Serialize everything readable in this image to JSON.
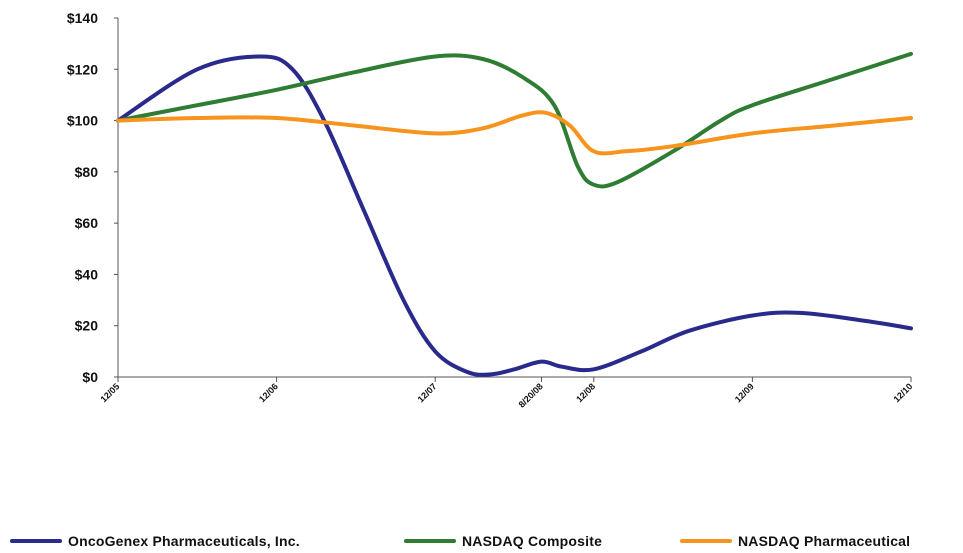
{
  "chart_data": {
    "type": "line",
    "title": "",
    "xlabel": "",
    "ylabel": "",
    "ylim": [
      0,
      140
    ],
    "y_ticks": [
      "$0",
      "$20",
      "$40",
      "$60",
      "$80",
      "$100",
      "$120",
      "$140"
    ],
    "y_tick_values": [
      0,
      20,
      40,
      60,
      80,
      100,
      120,
      140
    ],
    "x_ticks": [
      "12/05",
      "12/06",
      "12/07",
      "8/20/08",
      "12/08",
      "12/09",
      "12/10"
    ],
    "x_tick_positions": [
      0,
      1,
      2,
      2.67,
      3,
      4,
      5
    ],
    "xlim": [
      0,
      5
    ],
    "grid": false,
    "legend_position": "bottom",
    "series": [
      {
        "name": "OncoGenex Pharmaceuticals, Inc.",
        "color": "#2a2a8c",
        "points": [
          [
            0,
            100
          ],
          [
            0.5,
            120
          ],
          [
            0.9,
            125
          ],
          [
            1.1,
            120
          ],
          [
            1.3,
            100
          ],
          [
            1.55,
            65
          ],
          [
            1.8,
            30
          ],
          [
            2.0,
            10
          ],
          [
            2.2,
            2
          ],
          [
            2.35,
            1
          ],
          [
            2.5,
            3
          ],
          [
            2.67,
            6
          ],
          [
            2.8,
            4
          ],
          [
            3.0,
            3
          ],
          [
            3.3,
            10
          ],
          [
            3.6,
            18
          ],
          [
            4.0,
            24
          ],
          [
            4.3,
            25
          ],
          [
            4.7,
            22
          ],
          [
            5.0,
            19
          ]
        ]
      },
      {
        "name": "NASDAQ Composite",
        "color": "#2e7d32",
        "points": [
          [
            0,
            100
          ],
          [
            0.5,
            106
          ],
          [
            1.0,
            112
          ],
          [
            1.5,
            119
          ],
          [
            2.0,
            125
          ],
          [
            2.3,
            124
          ],
          [
            2.55,
            117
          ],
          [
            2.75,
            106
          ],
          [
            2.9,
            82
          ],
          [
            3.0,
            75
          ],
          [
            3.15,
            76
          ],
          [
            3.5,
            88
          ],
          [
            3.8,
            100
          ],
          [
            4.0,
            106
          ],
          [
            4.5,
            116
          ],
          [
            5.0,
            126
          ]
        ]
      },
      {
        "name": "NASDAQ Pharmaceutical",
        "color": "#f7941d",
        "points": [
          [
            0,
            100
          ],
          [
            0.5,
            101
          ],
          [
            1.0,
            101
          ],
          [
            1.5,
            98
          ],
          [
            2.0,
            95
          ],
          [
            2.3,
            97
          ],
          [
            2.55,
            102
          ],
          [
            2.7,
            103
          ],
          [
            2.85,
            98
          ],
          [
            3.0,
            88
          ],
          [
            3.2,
            88
          ],
          [
            3.5,
            90
          ],
          [
            4.0,
            95
          ],
          [
            4.5,
            98
          ],
          [
            5.0,
            101
          ]
        ]
      }
    ]
  }
}
